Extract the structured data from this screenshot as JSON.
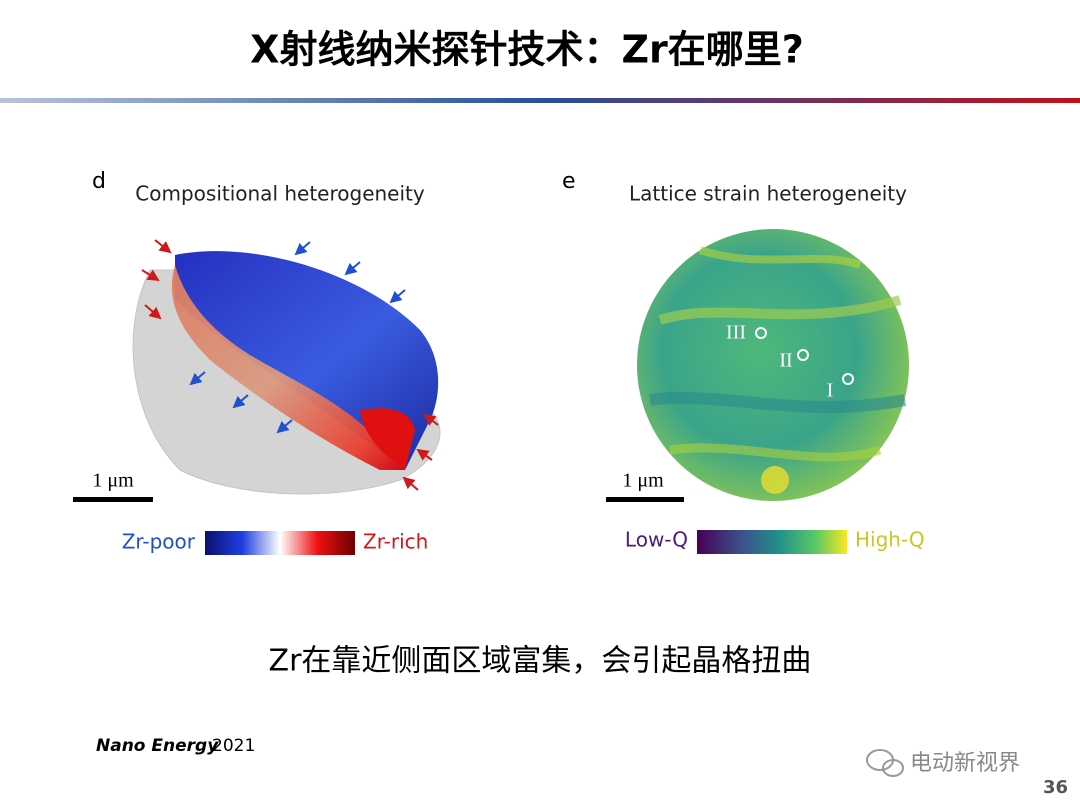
{
  "title": "X射线纳米探针技术：Zr在哪里?",
  "figures": [
    {
      "label": "d",
      "title": "Compositional heterogeneity",
      "scale_bar": "1 μm",
      "colorbar": {
        "low": "Zr-poor",
        "high": "Zr-rich"
      }
    },
    {
      "label": "e",
      "title": "Lattice strain heterogeneity",
      "scale_bar": "1 μm",
      "colorbar": {
        "low": "Low-Q",
        "high": "High-Q"
      },
      "markers": [
        "III",
        "II",
        "I"
      ]
    }
  ],
  "caption": "Zr在靠近侧面区域富集，会引起晶格扭曲",
  "citation": {
    "journal": "Nano Energy",
    "year": "2021"
  },
  "watermark": "电动新视界",
  "page_number": "36"
}
